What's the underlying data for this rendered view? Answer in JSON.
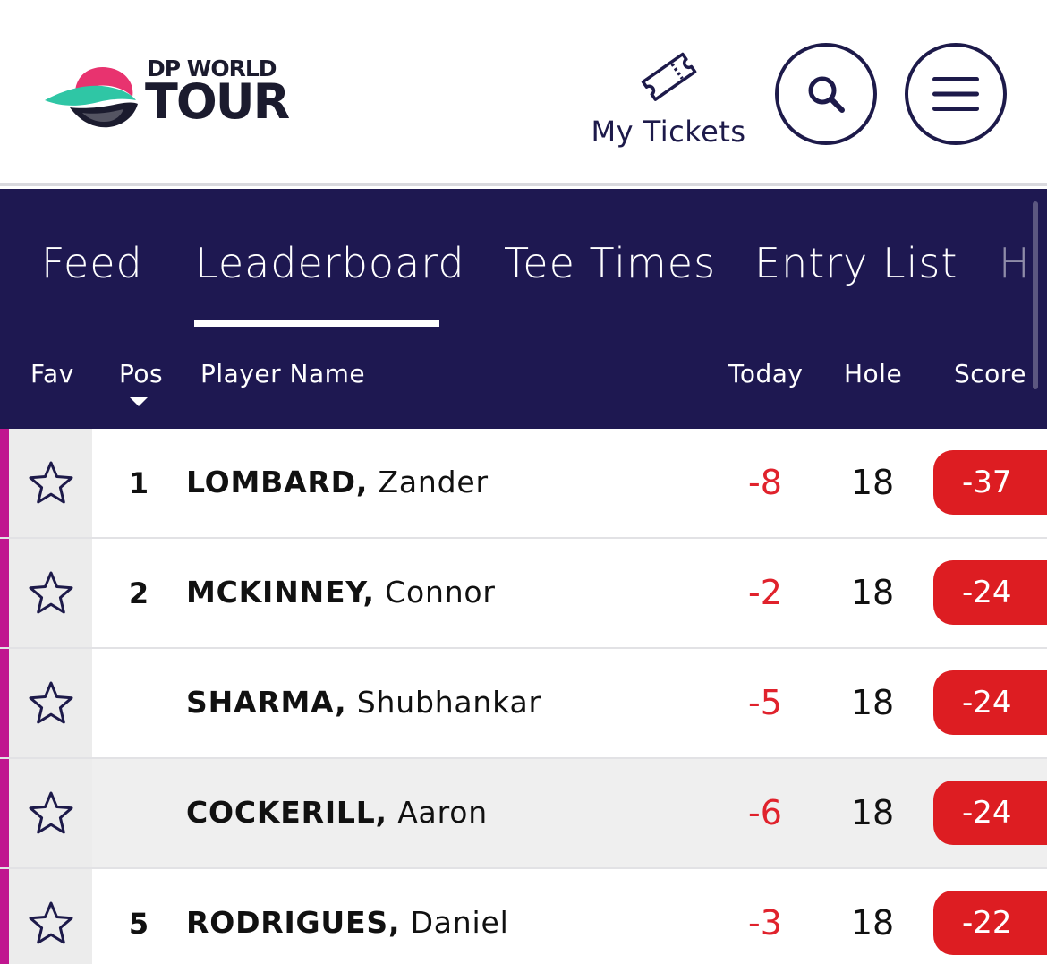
{
  "header": {
    "logo": {
      "line1": "DP WORLD",
      "line2": "TOUR",
      "colors": {
        "pink": "#e8336f",
        "teal": "#2fc6a5",
        "dark": "#1b1b2e"
      }
    },
    "tickets": {
      "icon": "ticket-icon",
      "label": "My Tickets"
    },
    "search": {
      "icon": "search-icon"
    },
    "menu": {
      "icon": "hamburger-icon"
    }
  },
  "nav": {
    "background": "#1e1851",
    "tabs": [
      {
        "label": "Feed",
        "active": false
      },
      {
        "label": "Leaderboard",
        "active": true
      },
      {
        "label": "Tee Times",
        "active": false
      },
      {
        "label": "Entry List",
        "active": false
      },
      {
        "label": "H",
        "active": false
      }
    ],
    "columns": {
      "fav": "Fav",
      "pos": "Pos",
      "player": "Player Name",
      "today": "Today",
      "hole": "Hole",
      "score": "Score"
    }
  },
  "leaderboard": {
    "accent_color": "#c0168f",
    "score_color": "#dd1d22",
    "rows": [
      {
        "pos": "1",
        "last": "LOMBARD,",
        "first": "Zander",
        "today": "-8",
        "hole": "18",
        "score": "-37"
      },
      {
        "pos": "2",
        "last": "MCKINNEY,",
        "first": "Connor",
        "today": "-2",
        "hole": "18",
        "score": "-24"
      },
      {
        "pos": "",
        "last": "SHARMA,",
        "first": "Shubhankar",
        "today": "-5",
        "hole": "18",
        "score": "-24"
      },
      {
        "pos": "",
        "last": "COCKERILL,",
        "first": "Aaron",
        "today": "-6",
        "hole": "18",
        "score": "-24"
      },
      {
        "pos": "5",
        "last": "RODRIGUES,",
        "first": "Daniel",
        "today": "-3",
        "hole": "18",
        "score": "-22"
      }
    ]
  }
}
